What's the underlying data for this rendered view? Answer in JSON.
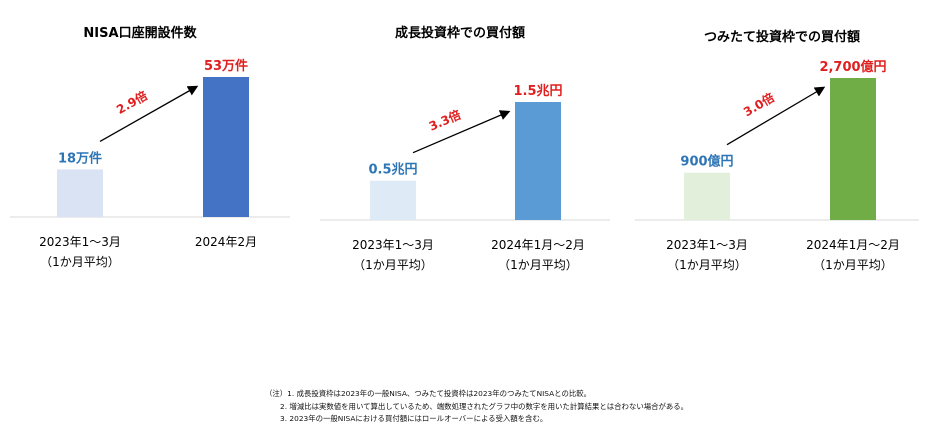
{
  "colors": {
    "value_blue": "#4472C4",
    "value_red": "#E02020",
    "line_gray": "#D9D9D9"
  },
  "chart_data": [
    {
      "type": "bar",
      "title": "NISA口座開設件数",
      "categories": [
        "2023年1～3月\n（1か月平均）",
        "2024年2月"
      ],
      "values": [
        18,
        53
      ],
      "unit": "万件",
      "data_labels": [
        "18万件",
        "53万件"
      ],
      "ratio_label": "2.9倍",
      "bar_colors": [
        "#DAE3F3",
        "#4472C4"
      ],
      "label_colors": [
        "#2E75B6",
        "#E02020"
      ]
    },
    {
      "type": "bar",
      "title": "成長投資枠での買付額",
      "categories": [
        "2023年1～3月\n（1か月平均）",
        "2024年1月～2月\n（1か月平均）"
      ],
      "values": [
        0.5,
        1.5
      ],
      "unit": "兆円",
      "data_labels": [
        "0.5兆円",
        "1.5兆円"
      ],
      "ratio_label": "3.3倍",
      "bar_colors": [
        "#DEEBF7",
        "#5B9BD5"
      ],
      "label_colors": [
        "#2E75B6",
        "#E02020"
      ]
    },
    {
      "type": "bar",
      "title": "つみたて投資枠での買付額",
      "categories": [
        "2023年1～3月\n（1か月平均）",
        "2024年1月～2月\n（1か月平均）"
      ],
      "values": [
        900,
        2700
      ],
      "unit": "億円",
      "data_labels": [
        "900億円",
        "2,700億円"
      ],
      "ratio_label": "3.0倍",
      "bar_colors": [
        "#E2EFDA",
        "#70AD47"
      ],
      "label_colors": [
        "#2E75B6",
        "#E02020"
      ]
    }
  ],
  "notes": [
    {
      "prefix": "（注）1.",
      "text": "成長投資枠は2023年の一般NISA、つみたて投資枠は2023年のつみたてNISAとの比較。"
    },
    {
      "prefix": "2.",
      "text": "増減比は実数値を用いて算出しているため、端数処理されたグラフ中の数字を用いた計算結果とは合わない場合がある。"
    },
    {
      "prefix": "3.",
      "text": "2023年の一般NISAにおける買付額にはロールオーバーによる受入額を含む。"
    }
  ]
}
